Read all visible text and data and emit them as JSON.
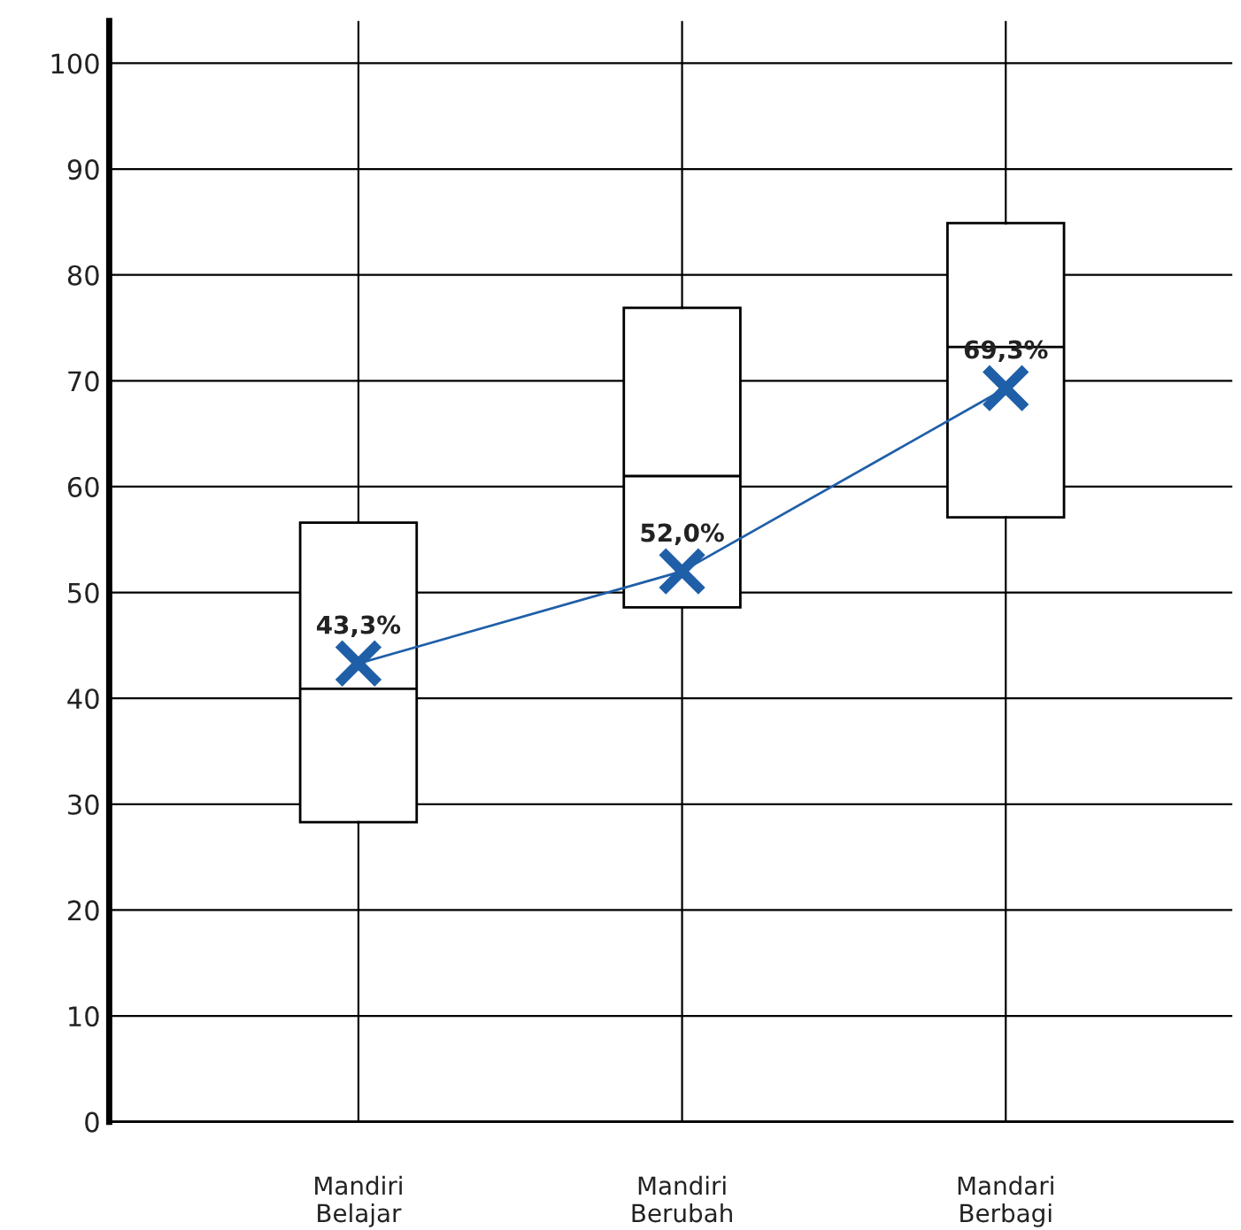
{
  "chart_data": {
    "type": "box",
    "categories": [
      "Mandiri\nBelajar",
      "Mandiri\nBerubah",
      "Mandari\nBerbagi"
    ],
    "boxes": [
      {
        "low": 28.3,
        "q1": 28.3,
        "median": 40.9,
        "q3": 56.6,
        "high": 56.6
      },
      {
        "low": 48.6,
        "q1": 48.6,
        "median": 61.0,
        "q3": 76.9,
        "high": 76.9
      },
      {
        "low": 57.1,
        "q1": 57.1,
        "median": 73.2,
        "q3": 84.9,
        "high": 84.9
      }
    ],
    "series": [
      {
        "type": "line",
        "color": "#1f5fa8",
        "marker": "cross",
        "line_style": "solid",
        "values": [
          43.3,
          52.0,
          69.3
        ],
        "value_labels": [
          "43,3%",
          "52,0%",
          "69,3%"
        ]
      }
    ],
    "ylim": [
      0,
      104
    ],
    "yticks": [
      0,
      10,
      20,
      30,
      40,
      50,
      60,
      70,
      80,
      90,
      100
    ],
    "grid": true,
    "legend": false
  }
}
